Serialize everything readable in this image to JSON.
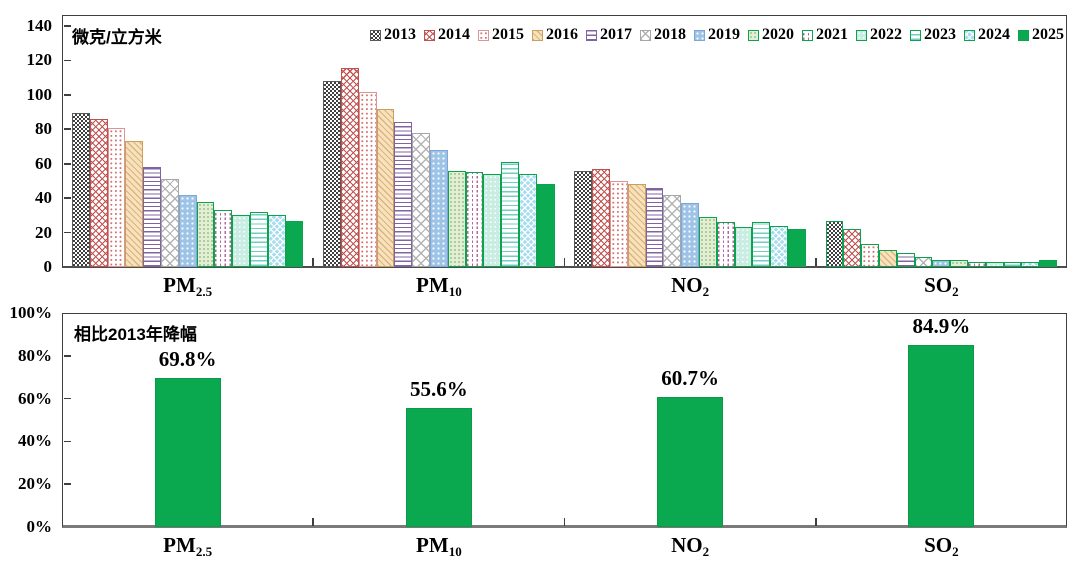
{
  "upper_chart": {
    "unit_label": "微克/立方米",
    "y_ticks": [
      {
        "v": 140,
        "label": "140"
      },
      {
        "v": 120,
        "label": "120"
      },
      {
        "v": 100,
        "label": "100"
      },
      {
        "v": 80,
        "label": "80"
      },
      {
        "v": 60,
        "label": "60"
      },
      {
        "v": 40,
        "label": "40"
      },
      {
        "v": 20,
        "label": "20"
      },
      {
        "v": 0,
        "label": "0"
      }
    ],
    "x_labels": [
      {
        "key": "pm25",
        "base": "PM",
        "sub": "2.5",
        "green": false
      },
      {
        "key": "pm10",
        "base": "PM",
        "sub": "10",
        "green": false
      },
      {
        "key": "no2",
        "base": "NO",
        "sub": "2",
        "green": false
      },
      {
        "key": "so2",
        "base": "SO",
        "sub": "2",
        "green": true
      }
    ]
  },
  "lower_chart": {
    "title": "相比2013年降幅",
    "y_ticks": [
      {
        "v": 100,
        "label": "100%"
      },
      {
        "v": 80,
        "label": "80%"
      },
      {
        "v": 60,
        "label": "60%"
      },
      {
        "v": 40,
        "label": "40%"
      },
      {
        "v": 20,
        "label": "20%"
      },
      {
        "v": 0,
        "label": "0%"
      }
    ],
    "bars": [
      {
        "category": "PM2.5",
        "label": "69.8%",
        "value": 69.8
      },
      {
        "category": "PM10",
        "label": "55.6%",
        "value": 55.6
      },
      {
        "category": "NO2",
        "label": "60.7%",
        "value": 60.7
      },
      {
        "category": "SO2",
        "label": "84.9%",
        "value": 84.9
      }
    ],
    "bar_color": "#0ba94f"
  },
  "chart_data": [
    {
      "type": "bar",
      "title": "微克/立方米",
      "categories": [
        "PM2.5",
        "PM10",
        "NO2",
        "SO2"
      ],
      "ylim": [
        0,
        140
      ],
      "grid": false,
      "legend_position": "top",
      "series": [
        {
          "name": "2013",
          "css": "y2013",
          "color": "#404040",
          "values": [
            89.5,
            108.1,
            56,
            26.5
          ]
        },
        {
          "name": "2014",
          "css": "y2014",
          "color": "#c0504d",
          "values": [
            85.9,
            115.8,
            56.7,
            21.8
          ]
        },
        {
          "name": "2015",
          "css": "y2015",
          "color": "#d99694",
          "values": [
            80.6,
            101.5,
            50,
            13.5
          ]
        },
        {
          "name": "2016",
          "css": "y2016",
          "color": "#cba05f",
          "values": [
            73,
            92,
            48,
            10
          ]
        },
        {
          "name": "2017",
          "css": "y2017",
          "color": "#8064a2",
          "values": [
            58,
            84,
            46,
            8
          ]
        },
        {
          "name": "2018",
          "css": "y2018",
          "color": "#a6a6a6",
          "values": [
            51,
            78,
            42,
            6
          ]
        },
        {
          "name": "2019",
          "css": "y2019",
          "color": "#9dc3e6",
          "values": [
            42,
            68,
            37,
            4
          ]
        },
        {
          "name": "2020",
          "css": "y2020",
          "color": "#a8c97f",
          "values": [
            38,
            56,
            29,
            4
          ]
        },
        {
          "name": "2021",
          "css": "y2021",
          "color": "#b26a9e",
          "values": [
            33,
            55,
            26,
            3
          ]
        },
        {
          "name": "2022",
          "css": "y2022",
          "color": "#9adfd0",
          "values": [
            30,
            54,
            23,
            3
          ]
        },
        {
          "name": "2023",
          "css": "y2023",
          "color": "#6fcfc0",
          "values": [
            32,
            61,
            26,
            3
          ]
        },
        {
          "name": "2024",
          "css": "y2024",
          "color": "#a6dcf0",
          "values": [
            30.5,
            54,
            24,
            3
          ]
        },
        {
          "name": "2025",
          "css": "y2025",
          "color": "#0ba94f",
          "values": [
            27,
            48,
            22,
            4
          ]
        }
      ]
    },
    {
      "type": "bar",
      "title": "相比2013年降幅",
      "categories": [
        "PM2.5",
        "PM10",
        "NO2",
        "SO2"
      ],
      "values": [
        69.8,
        55.6,
        60.7,
        84.9
      ],
      "labels": [
        "69.8%",
        "55.6%",
        "60.7%",
        "84.9%"
      ],
      "ylim": [
        0,
        100
      ],
      "grid": false,
      "bar_color": "#0ba94f"
    }
  ]
}
